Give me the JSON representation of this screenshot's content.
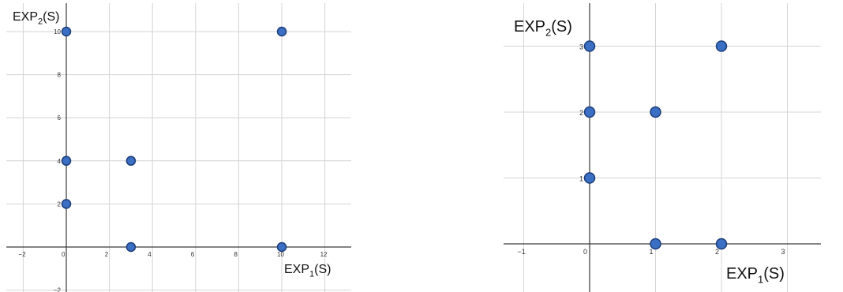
{
  "chart_data": [
    {
      "type": "scatter",
      "xlabel": "EXP",
      "xlabel_sub": "1",
      "xlabel_suffix": "(S)",
      "ylabel": "EXP",
      "ylabel_sub": "2",
      "ylabel_suffix": "(S)",
      "xlim": [
        -2.6,
        13.2
      ],
      "ylim": [
        -2,
        11
      ],
      "x_ticks": [
        -2,
        0,
        2,
        4,
        6,
        8,
        10,
        12
      ],
      "y_ticks": [
        -2,
        2,
        4,
        6,
        8,
        10
      ],
      "grid": true,
      "marker_color": "#3a6fc4",
      "points": [
        {
          "x": 0,
          "y": 10
        },
        {
          "x": 10,
          "y": 10
        },
        {
          "x": 0,
          "y": 4
        },
        {
          "x": 3,
          "y": 4
        },
        {
          "x": 0,
          "y": 2
        },
        {
          "x": 3,
          "y": 0
        },
        {
          "x": 10,
          "y": 0
        }
      ]
    },
    {
      "type": "scatter",
      "xlabel": "EXP",
      "xlabel_sub": "1",
      "xlabel_suffix": "(S)",
      "ylabel": "EXP",
      "ylabel_sub": "2",
      "ylabel_suffix": "(S)",
      "xlim": [
        -1.3,
        3.8
      ],
      "ylim": [
        -0.5,
        3.7
      ],
      "x_ticks": [
        -1,
        0,
        1,
        2,
        3
      ],
      "y_ticks": [
        1,
        2,
        3
      ],
      "grid": true,
      "marker_color": "#3a6fc4",
      "points": [
        {
          "x": 0,
          "y": 3
        },
        {
          "x": 2,
          "y": 3
        },
        {
          "x": 0,
          "y": 2
        },
        {
          "x": 1,
          "y": 2
        },
        {
          "x": 0,
          "y": 1
        },
        {
          "x": 1,
          "y": 0
        },
        {
          "x": 2,
          "y": 0
        }
      ]
    }
  ]
}
